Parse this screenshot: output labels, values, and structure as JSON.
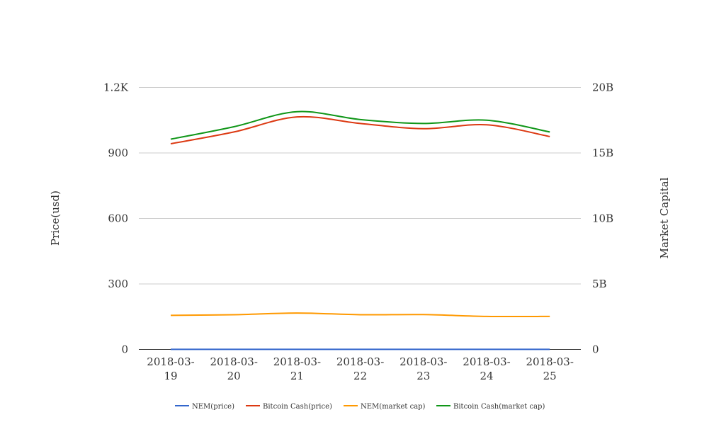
{
  "chart_data": {
    "type": "line",
    "title": "",
    "categories": [
      "2018-03-19",
      "2018-03-20",
      "2018-03-21",
      "2018-03-22",
      "2018-03-23",
      "2018-03-24",
      "2018-03-25"
    ],
    "category_lines": [
      [
        "2018-03-",
        "19"
      ],
      [
        "2018-03-",
        "20"
      ],
      [
        "2018-03-",
        "21"
      ],
      [
        "2018-03-",
        "22"
      ],
      [
        "2018-03-",
        "23"
      ],
      [
        "2018-03-",
        "24"
      ],
      [
        "2018-03-",
        "25"
      ]
    ],
    "y_left": {
      "label": "Price(usd)",
      "ylim": [
        0,
        1200
      ],
      "ticks": [
        0,
        300,
        600,
        900,
        1200
      ],
      "tick_labels": [
        "0",
        "300",
        "600",
        "900",
        "1.2K"
      ]
    },
    "y_right": {
      "label": "Market Capital",
      "ylim": [
        0,
        20000000000
      ],
      "ticks": [
        0,
        5000000000,
        10000000000,
        15000000000,
        20000000000
      ],
      "tick_labels": [
        "0",
        "5B",
        "10B",
        "15B",
        "20B"
      ]
    },
    "grid": true,
    "legend_position": "bottom",
    "series": [
      {
        "name": "NEM(price)",
        "axis": "left",
        "color": "#3366cc",
        "values": [
          0.37,
          0.38,
          0.4,
          0.37,
          0.36,
          0.34,
          0.33
        ]
      },
      {
        "name": "Bitcoin Cash(price)",
        "axis": "right",
        "color": "#dc3912",
        "values": [
          15700000000,
          16600000000,
          17750000000,
          17250000000,
          16850000000,
          17150000000,
          16250000000
        ]
      },
      {
        "name": "NEM(market cap)",
        "axis": "right",
        "color": "#ff9900",
        "values": [
          2600000000,
          2650000000,
          2780000000,
          2650000000,
          2660000000,
          2520000000,
          2520000000
        ]
      },
      {
        "name": "Bitcoin Cash(market cap)",
        "axis": "right",
        "color": "#109618",
        "values": [
          16050000000,
          17000000000,
          18150000000,
          17550000000,
          17250000000,
          17500000000,
          16600000000
        ]
      }
    ]
  }
}
